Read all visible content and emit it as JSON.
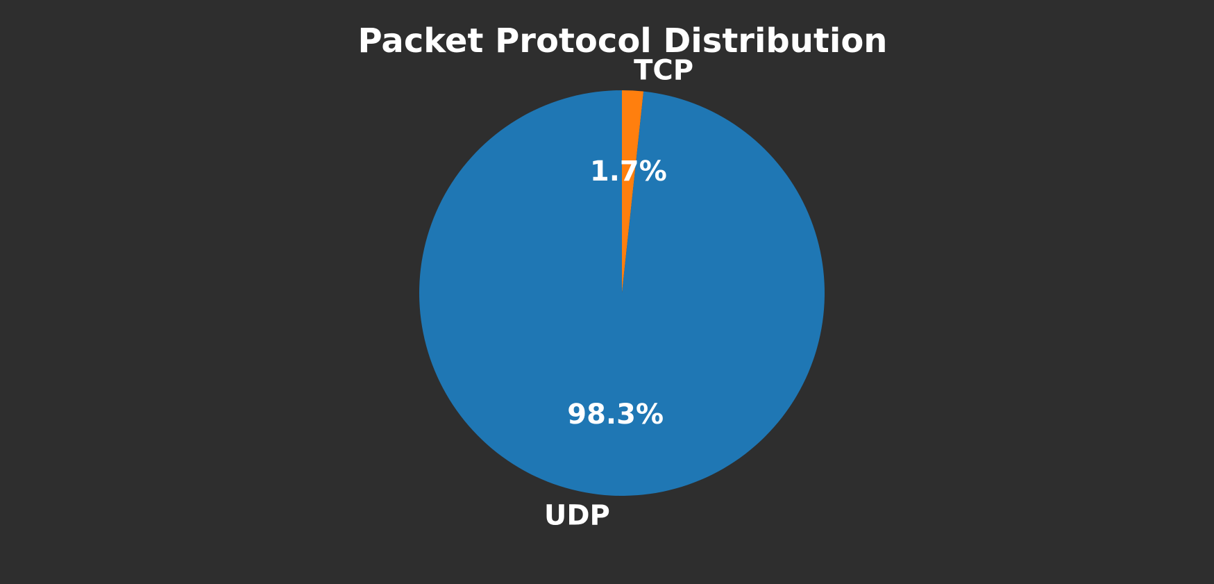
{
  "colors": {
    "background": "#2e2e2e",
    "text": "#ffffff"
  },
  "chart_data": {
    "type": "pie",
    "title": "Packet Protocol Distribution",
    "start_angle_deg": 90,
    "direction": "clockwise",
    "slices": [
      {
        "label": "TCP",
        "value": 1.7,
        "pct_label": "1.7%",
        "color": "#ff7f0e"
      },
      {
        "label": "UDP",
        "value": 98.3,
        "pct_label": "98.3%",
        "color": "#1f77b4"
      }
    ]
  }
}
